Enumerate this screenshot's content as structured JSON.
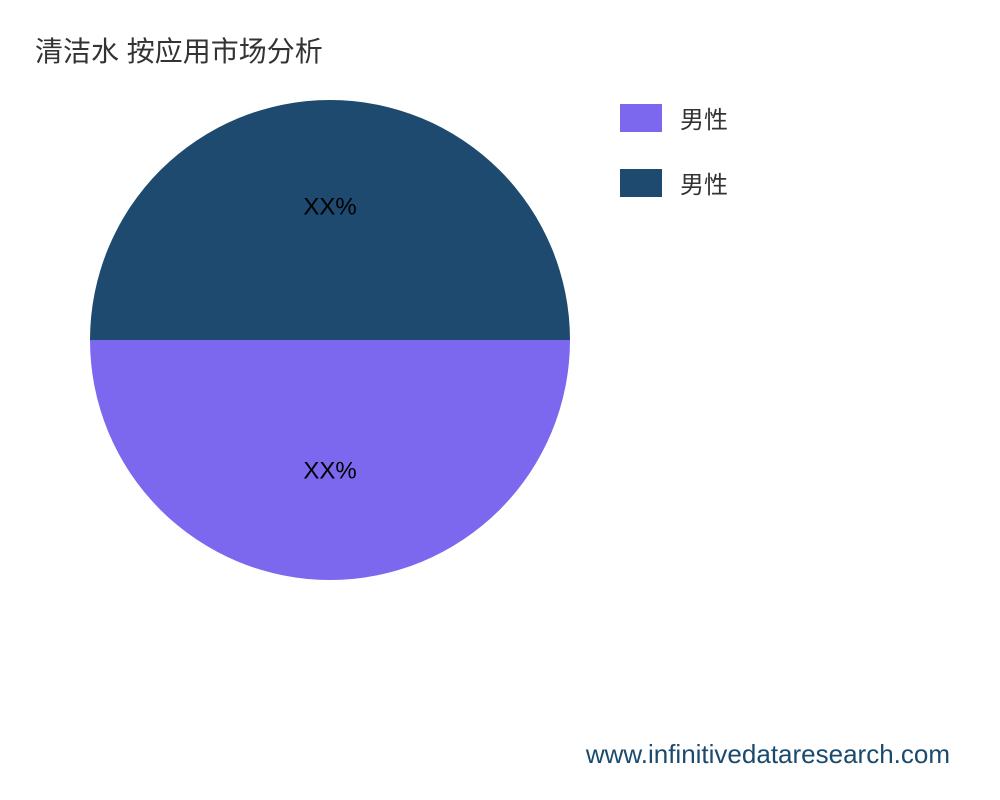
{
  "chart": {
    "type": "pie",
    "title": "清洁水 按应用市场分析",
    "title_fontsize": 28,
    "title_color": "#333333",
    "background_color": "#ffffff",
    "radius": 240,
    "slices": [
      {
        "label": "男性",
        "value": 50,
        "display_label": "XX%",
        "color": "#1d4a6e"
      },
      {
        "label": "男性",
        "value": 50,
        "display_label": "XX%",
        "color": "#7b68ee"
      }
    ],
    "label_fontsize": 24,
    "label_color": "#000000"
  },
  "legend": {
    "items": [
      {
        "color": "#7b68ee",
        "label": "男性"
      },
      {
        "color": "#1d4a6e",
        "label": "男性"
      }
    ],
    "swatch_width": 42,
    "swatch_height": 28,
    "label_fontsize": 24,
    "label_color": "#333333"
  },
  "footer": {
    "text": "www.infinitivedataresearch.com",
    "fontsize": 26,
    "color": "#1a4a6e"
  }
}
